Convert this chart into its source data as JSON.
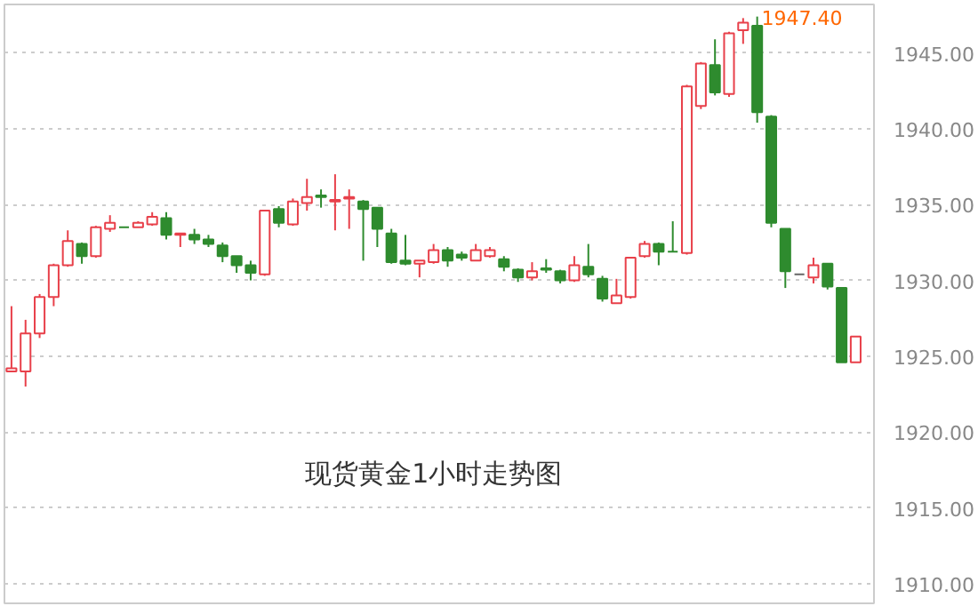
{
  "chart_data": {
    "type": "candlestick",
    "title": "现货黄金1小时走势图",
    "categories": [
      null,
      null,
      null,
      null,
      null,
      null,
      null,
      null,
      null,
      null,
      null,
      null,
      null,
      null,
      null,
      null,
      null,
      null,
      null,
      null,
      null,
      null,
      null,
      null,
      null,
      null,
      null,
      null,
      null,
      null,
      null,
      null,
      null,
      null,
      null,
      null,
      null,
      null,
      null,
      null,
      null,
      null,
      null,
      null,
      null,
      null,
      null,
      null,
      null,
      null,
      null,
      null,
      null,
      null,
      null,
      null,
      null,
      null,
      null,
      null,
      null
    ],
    "ohlc": [
      [
        1924.0,
        1928.3,
        1924.0,
        1924.2
      ],
      [
        1924.0,
        1927.4,
        1923.0,
        1926.5
      ],
      [
        1926.5,
        1929.1,
        1926.2,
        1928.9
      ],
      [
        1928.9,
        1931.1,
        1928.3,
        1931.0
      ],
      [
        1931.0,
        1933.3,
        1930.9,
        1932.6
      ],
      [
        1932.4,
        1932.5,
        1931.1,
        1931.6
      ],
      [
        1931.6,
        1933.6,
        1931.5,
        1933.5
      ],
      [
        1933.4,
        1934.3,
        1933.2,
        1933.8
      ],
      [
        1933.5,
        1933.5,
        1933.5,
        1933.5
      ],
      [
        1933.5,
        1933.9,
        1933.5,
        1933.8
      ],
      [
        1933.7,
        1934.5,
        1933.6,
        1934.2
      ],
      [
        1934.1,
        1934.5,
        1932.7,
        1933.0
      ],
      [
        1933.0,
        1933.1,
        1932.2,
        1933.1
      ],
      [
        1933.0,
        1933.4,
        1932.4,
        1932.7
      ],
      [
        1932.7,
        1933.0,
        1932.2,
        1932.4
      ],
      [
        1932.3,
        1932.5,
        1931.2,
        1931.6
      ],
      [
        1931.6,
        1931.6,
        1930.5,
        1931.0
      ],
      [
        1931.0,
        1931.3,
        1930.0,
        1930.5
      ],
      [
        1930.4,
        1934.6,
        1930.3,
        1934.6
      ],
      [
        1934.7,
        1934.9,
        1933.5,
        1933.8
      ],
      [
        1933.7,
        1935.4,
        1933.6,
        1935.2
      ],
      [
        1935.1,
        1936.7,
        1934.6,
        1935.5
      ],
      [
        1935.6,
        1936.0,
        1934.8,
        1935.5
      ],
      [
        1935.2,
        1937.0,
        1933.3,
        1935.3
      ],
      [
        1935.4,
        1936.0,
        1933.4,
        1935.5
      ],
      [
        1935.2,
        1935.3,
        1931.3,
        1934.7
      ],
      [
        1934.8,
        1934.8,
        1932.2,
        1933.4
      ],
      [
        1933.1,
        1933.4,
        1931.1,
        1931.2
      ],
      [
        1931.3,
        1933.0,
        1931.0,
        1931.1
      ],
      [
        1931.1,
        1931.3,
        1930.2,
        1931.3
      ],
      [
        1931.2,
        1932.4,
        1931.1,
        1932.0
      ],
      [
        1932.0,
        1932.2,
        1930.9,
        1931.3
      ],
      [
        1931.7,
        1931.9,
        1931.3,
        1931.5
      ],
      [
        1931.3,
        1932.4,
        1931.3,
        1932.0
      ],
      [
        1931.6,
        1932.2,
        1931.5,
        1932.0
      ],
      [
        1931.4,
        1931.6,
        1930.6,
        1930.9
      ],
      [
        1930.7,
        1930.8,
        1929.9,
        1930.2
      ],
      [
        1930.2,
        1931.2,
        1930.0,
        1930.6
      ],
      [
        1930.8,
        1931.4,
        1930.5,
        1930.7
      ],
      [
        1930.6,
        1930.7,
        1929.8,
        1930.0
      ],
      [
        1930.0,
        1931.6,
        1929.9,
        1931.0
      ],
      [
        1930.9,
        1932.4,
        1930.2,
        1930.4
      ],
      [
        1930.1,
        1930.3,
        1928.6,
        1928.8
      ],
      [
        1928.5,
        1930.1,
        1928.5,
        1929.0
      ],
      [
        1928.9,
        1931.5,
        1928.8,
        1931.5
      ],
      [
        1931.6,
        1932.6,
        1931.5,
        1932.4
      ],
      [
        1932.4,
        1932.5,
        1931.0,
        1931.9
      ],
      [
        1931.9,
        1933.9,
        1931.9,
        1931.9
      ],
      [
        1931.8,
        1942.9,
        1931.7,
        1942.8
      ],
      [
        1941.5,
        1944.4,
        1941.3,
        1944.3
      ],
      [
        1944.2,
        1945.9,
        1942.2,
        1942.4
      ],
      [
        1942.3,
        1946.4,
        1942.1,
        1946.3
      ],
      [
        1946.5,
        1947.3,
        1945.6,
        1947.0
      ],
      [
        1946.8,
        1947.4,
        1940.4,
        1941.1
      ],
      [
        1940.8,
        1940.9,
        1933.5,
        1933.8
      ],
      [
        1933.4,
        1933.4,
        1929.5,
        1930.6
      ],
      [
        1930.4,
        1930.4,
        1930.4,
        1930.4
      ],
      [
        1930.2,
        1931.5,
        1929.8,
        1931.0
      ],
      [
        1931.1,
        1931.1,
        1929.4,
        1929.6
      ],
      [
        1929.5,
        1929.5,
        1924.6,
        1924.6
      ],
      [
        1924.6,
        1926.3,
        1924.6,
        1926.3
      ]
    ],
    "colors": [
      "#e8404a",
      "#e8404a",
      "#e8404a",
      "#e8404a",
      "#e8404a",
      "#2e8b2e",
      "#e8404a",
      "#e8404a",
      "#2e8b2e",
      "#e8404a",
      "#e8404a",
      "#2e8b2e",
      "#e8404a",
      "#2e8b2e",
      "#2e8b2e",
      "#2e8b2e",
      "#2e8b2e",
      "#2e8b2e",
      "#e8404a",
      "#2e8b2e",
      "#e8404a",
      "#e8404a",
      "#2e8b2e",
      "#e8404a",
      "#e8404a",
      "#2e8b2e",
      "#2e8b2e",
      "#2e8b2e",
      "#2e8b2e",
      "#e8404a",
      "#e8404a",
      "#2e8b2e",
      "#2e8b2e",
      "#e8404a",
      "#e8404a",
      "#2e8b2e",
      "#2e8b2e",
      "#e8404a",
      "#2e8b2e",
      "#2e8b2e",
      "#e8404a",
      "#2e8b2e",
      "#2e8b2e",
      "#e8404a",
      "#e8404a",
      "#e8404a",
      "#2e8b2e",
      "#2e8b2e",
      "#e8404a",
      "#e8404a",
      "#2e8b2e",
      "#e8404a",
      "#e8404a",
      "#2e8b2e",
      "#2e8b2e",
      "#2e8b2e",
      "#666666",
      "#e8404a",
      "#2e8b2e",
      "#2e8b2e",
      "#e8404a"
    ],
    "ylim": [
      1908.7,
      1948.2
    ],
    "yticks": [
      {
        "value": 1910,
        "label": "1910.00"
      },
      {
        "value": 1915,
        "label": "1915.00"
      },
      {
        "value": 1920,
        "label": "1920.00"
      },
      {
        "value": 1925,
        "label": "1925.00"
      },
      {
        "value": 1930,
        "label": "1930.00"
      },
      {
        "value": 1935,
        "label": "1935.00"
      },
      {
        "value": 1940,
        "label": "1940.00"
      },
      {
        "value": 1945,
        "label": "1945.00"
      }
    ],
    "grid": "y",
    "annotations": [
      "1947.40"
    ]
  }
}
